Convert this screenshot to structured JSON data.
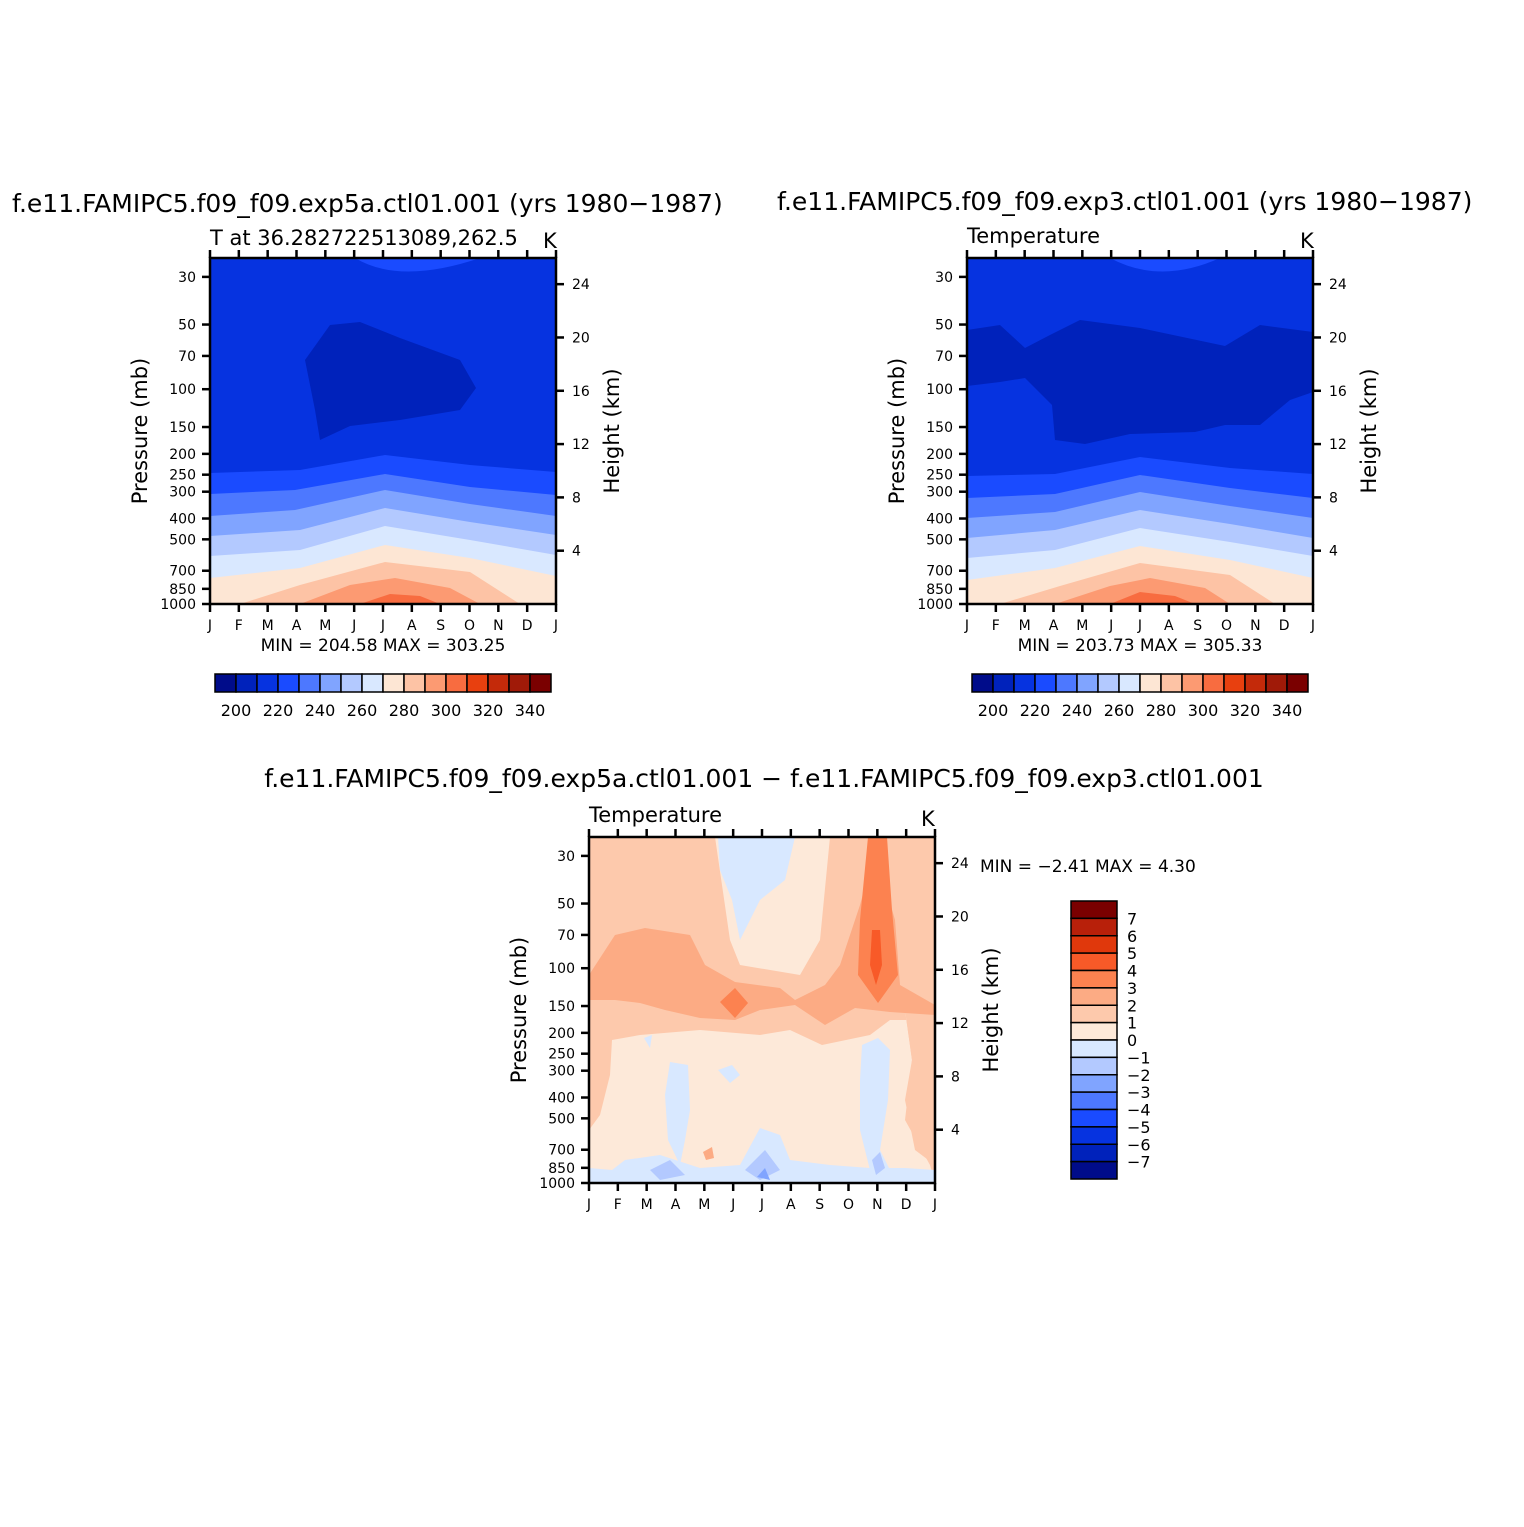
{
  "chart_data": [
    {
      "type": "contour",
      "id": "panel-exp5a",
      "title": "f.e11.FAMIPC5.f09_f09.exp5a.ctl01.001 (yrs 1980-1987)",
      "subtitle_left": "T at 36.282722513089,262.5",
      "units": "K",
      "ylabel": "Pressure (mb)",
      "ylabel_right": "Height (km)",
      "x_ticks": [
        "J",
        "F",
        "M",
        "A",
        "M",
        "J",
        "J",
        "A",
        "S",
        "O",
        "N",
        "D",
        "J"
      ],
      "pressure_ticks": [
        30,
        50,
        70,
        100,
        150,
        200,
        250,
        300,
        400,
        500,
        700,
        850,
        1000
      ],
      "height_ticks": [
        24,
        20,
        16,
        12,
        8,
        4
      ],
      "min_label": "MIN = 204.58 MAX = 303.25",
      "min": 204.58,
      "max": 303.25,
      "bands": [
        {
          "level": "<200",
          "p_top": 0,
          "p_bottom": 0,
          "color": "#001a9e"
        },
        {
          "level": "200-210",
          "color": "#0022bb",
          "region": "core 60-150 mb, May-Oct"
        },
        {
          "level": "210-220",
          "color": "#0633e0",
          "region": "30-250 mb"
        },
        {
          "level": "220-230",
          "color": "#1a4bff",
          "region": "250-300 mb"
        },
        {
          "level": "230-240",
          "color": "#4d78ff",
          "region": "300-400 mb"
        },
        {
          "level": "240-250",
          "color": "#80a4ff",
          "region": "400-500 mb"
        },
        {
          "level": "250-260",
          "color": "#b3c9ff",
          "region": "500-600 mb"
        },
        {
          "level": "260-270",
          "color": "#d9e8ff",
          "region": "600-750 mb"
        },
        {
          "level": "270-280",
          "color": "#fde6d4",
          "region": "750-900 mb"
        },
        {
          "level": "280-290",
          "color": "#fdc3a5",
          "region": "850-950 mb summer"
        },
        {
          "level": "290-300",
          "color": "#fc9a72",
          "region": "near surface Jun-Sep"
        },
        {
          "level": "300-310",
          "color": "#f86c40",
          "region": "surface Jul-Aug"
        }
      ],
      "colorbar": {
        "labels": [
          "200",
          "220",
          "240",
          "260",
          "280",
          "300",
          "320",
          "340"
        ],
        "colors": [
          "#000c8a",
          "#0022bb",
          "#0633e0",
          "#1a4bff",
          "#4d78ff",
          "#80a4ff",
          "#b3c9ff",
          "#d9e8ff",
          "#fde6d4",
          "#fdc3a5",
          "#fc9a72",
          "#f86c40",
          "#e8400f",
          "#c42a0a",
          "#a01a08",
          "#7a0000"
        ]
      }
    },
    {
      "type": "contour",
      "id": "panel-exp3",
      "title": "f.e11.FAMIPC5.f09_f09.exp3.ctl01.001 (yrs 1980-1987)",
      "subtitle_left": "Temperature",
      "units": "K",
      "ylabel": "Pressure (mb)",
      "ylabel_right": "Height (km)",
      "x_ticks": [
        "J",
        "F",
        "M",
        "A",
        "M",
        "J",
        "J",
        "A",
        "S",
        "O",
        "N",
        "D",
        "J"
      ],
      "pressure_ticks": [
        30,
        50,
        70,
        100,
        150,
        200,
        250,
        300,
        400,
        500,
        700,
        850,
        1000
      ],
      "height_ticks": [
        24,
        20,
        16,
        12,
        8,
        4
      ],
      "min_label": "MIN = 203.73 MAX = 305.33",
      "min": 203.73,
      "max": 305.33,
      "colorbar": {
        "labels": [
          "200",
          "220",
          "240",
          "260",
          "280",
          "300",
          "320",
          "340"
        ],
        "colors": [
          "#000c8a",
          "#0022bb",
          "#0633e0",
          "#1a4bff",
          "#4d78ff",
          "#80a4ff",
          "#b3c9ff",
          "#d9e8ff",
          "#fde6d4",
          "#fdc3a5",
          "#fc9a72",
          "#f86c40",
          "#e8400f",
          "#c42a0a",
          "#a01a08",
          "#7a0000"
        ]
      }
    },
    {
      "type": "contour",
      "id": "panel-diff",
      "title": "f.e11.FAMIPC5.f09_f09.exp5a.ctl01.001 - f.e11.FAMIPC5.f09_f09.exp3.ctl01.001",
      "subtitle_left": "Temperature",
      "units": "K",
      "ylabel": "Pressure (mb)",
      "ylabel_right": "Height (km)",
      "x_ticks": [
        "J",
        "F",
        "M",
        "A",
        "M",
        "J",
        "J",
        "A",
        "S",
        "O",
        "N",
        "D",
        "J"
      ],
      "pressure_ticks": [
        30,
        50,
        70,
        100,
        150,
        200,
        250,
        300,
        400,
        500,
        700,
        850,
        1000
      ],
      "height_ticks": [
        24,
        20,
        16,
        12,
        8,
        4
      ],
      "min_label": "MIN = -2.41 MAX = 4.30",
      "min": -2.41,
      "max": 4.3,
      "colorbar": {
        "labels": [
          "7",
          "6",
          "5",
          "4",
          "3",
          "2",
          "1",
          "0",
          "-1",
          "-2",
          "-3",
          "-4",
          "-5",
          "-6",
          "-7"
        ],
        "colors": [
          "#7a0000",
          "#b8200a",
          "#e0380c",
          "#f85a28",
          "#fc8250",
          "#fcab84",
          "#fdc9ac",
          "#fde9d9",
          "#d8e8ff",
          "#b3c9ff",
          "#80a4ff",
          "#4d78ff",
          "#1a4bff",
          "#0633e0",
          "#0022bb",
          "#000c8a"
        ]
      }
    }
  ]
}
